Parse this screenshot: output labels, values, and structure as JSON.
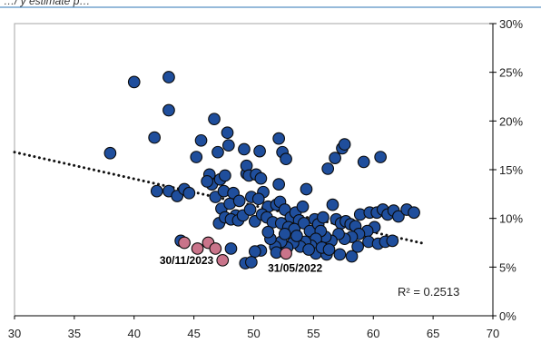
{
  "header": {
    "text": "…/ y estimate p…"
  },
  "chart_data": {
    "type": "scatter",
    "title": "",
    "xlabel": "",
    "ylabel": "",
    "xlim": [
      30,
      70
    ],
    "ylim": [
      0,
      30
    ],
    "x_ticks": [
      "30",
      "35",
      "40",
      "45",
      "50",
      "55",
      "60",
      "65",
      "70"
    ],
    "y_ticks": [
      "0%",
      "5%",
      "10%",
      "15%",
      "20%",
      "25%",
      "30%"
    ],
    "y_axis_position": "right",
    "grid": false,
    "colors": {
      "main": "#1f4e9c",
      "highlight": "#c9748a",
      "outline": "#0a0a0a",
      "trend": "#111111",
      "accent": "#2e74b5"
    },
    "series": [
      {
        "role": "main",
        "points": [
          [
            38,
            16.7
          ],
          [
            40,
            24
          ],
          [
            41.7,
            18.3
          ],
          [
            42.9,
            24.5
          ],
          [
            42.9,
            21.1
          ],
          [
            41.9,
            12.8
          ],
          [
            42.9,
            12.8
          ],
          [
            43.6,
            12.3
          ],
          [
            44.2,
            13
          ],
          [
            44.6,
            12.6
          ],
          [
            43.9,
            7.7
          ],
          [
            45.2,
            16.3
          ],
          [
            45.6,
            18
          ],
          [
            46.3,
            14.5
          ],
          [
            46.5,
            13.5
          ],
          [
            46.7,
            20.2
          ],
          [
            47,
            16.8
          ],
          [
            47.2,
            14
          ],
          [
            47.8,
            18.8
          ],
          [
            47.9,
            17.5
          ],
          [
            47.6,
            14.4
          ],
          [
            46.1,
            13.8
          ],
          [
            46.8,
            12.2
          ],
          [
            47.3,
            11
          ],
          [
            47.5,
            12.8
          ],
          [
            48,
            11.5
          ],
          [
            48.3,
            12.6
          ],
          [
            48.5,
            10.3
          ],
          [
            48.8,
            11.8
          ],
          [
            49.2,
            17.1
          ],
          [
            49.4,
            14.6
          ],
          [
            49.4,
            15.4
          ],
          [
            49.6,
            14.4
          ],
          [
            49.8,
            12.2
          ],
          [
            50.2,
            14.5
          ],
          [
            50.5,
            16.9
          ],
          [
            50.6,
            14.1
          ],
          [
            50.8,
            12.7
          ],
          [
            50.4,
            12
          ],
          [
            51.2,
            11.2
          ],
          [
            47.1,
            9.5
          ],
          [
            47.6,
            10.1
          ],
          [
            48.1,
            9.9
          ],
          [
            48.7,
            9.8
          ],
          [
            49.1,
            10.3
          ],
          [
            49.7,
            10.9
          ],
          [
            50.1,
            9.7
          ],
          [
            50.7,
            10.4
          ],
          [
            51.1,
            10.1
          ],
          [
            51.6,
            9.6
          ],
          [
            52.1,
            18.2
          ],
          [
            52.4,
            16.8
          ],
          [
            52.7,
            16.1
          ],
          [
            52.1,
            13.5
          ],
          [
            51.9,
            11.4
          ],
          [
            52.2,
            11.7
          ],
          [
            52.6,
            10.9
          ],
          [
            53.1,
            10.1
          ],
          [
            53.5,
            10.6
          ],
          [
            53.8,
            9.8
          ],
          [
            52.3,
            9.5
          ],
          [
            52.9,
            9.1
          ],
          [
            53.4,
            8.9
          ],
          [
            54.1,
            11.2
          ],
          [
            54.4,
            13
          ],
          [
            54.2,
            9.5
          ],
          [
            54.7,
            8.7
          ],
          [
            55.1,
            9.9
          ],
          [
            55.4,
            9.4
          ],
          [
            55.8,
            10.1
          ],
          [
            56.2,
            15.1
          ],
          [
            56.8,
            16.2
          ],
          [
            57.4,
            17.2
          ],
          [
            57.6,
            17.6
          ],
          [
            56.6,
            11.4
          ],
          [
            56.9,
            9.9
          ],
          [
            57.3,
            9.5
          ],
          [
            57.7,
            9.7
          ],
          [
            58.1,
            9.4
          ],
          [
            58.5,
            9.2
          ],
          [
            58.9,
            10.4
          ],
          [
            59.2,
            15.8
          ],
          [
            60.6,
            16.3
          ],
          [
            59.7,
            10.6
          ],
          [
            60.3,
            10.6
          ],
          [
            60.8,
            10.9
          ],
          [
            61.2,
            10.4
          ],
          [
            61.7,
            10.8
          ],
          [
            62.1,
            10.2
          ],
          [
            62.8,
            10.9
          ],
          [
            63.4,
            10.6
          ],
          [
            60.1,
            9.1
          ],
          [
            59.5,
            8.7
          ],
          [
            58.8,
            8.4
          ],
          [
            58.2,
            8.1
          ],
          [
            57.6,
            7.9
          ],
          [
            57.1,
            8.4
          ],
          [
            56.5,
            7.7
          ],
          [
            56,
            8.1
          ],
          [
            55.6,
            8.7
          ],
          [
            55.2,
            7.9
          ],
          [
            54.8,
            7.2
          ],
          [
            54.3,
            7.6
          ],
          [
            53.9,
            7.1
          ],
          [
            53.3,
            7.5
          ],
          [
            52.8,
            7
          ],
          [
            52.3,
            7.6
          ],
          [
            51.8,
            7.1
          ],
          [
            51.4,
            7.9
          ],
          [
            50.6,
            6.7
          ],
          [
            50.1,
            6.6
          ],
          [
            49.3,
            5.4
          ],
          [
            49.8,
            5.5
          ],
          [
            48.1,
            6.9
          ],
          [
            51.9,
            6.5
          ],
          [
            55.2,
            6.4
          ],
          [
            56.1,
            6.3
          ],
          [
            57.2,
            6.3
          ],
          [
            58.2,
            6.1
          ],
          [
            54.6,
            6.8
          ],
          [
            59.6,
            7.6
          ],
          [
            60.4,
            7.4
          ],
          [
            61,
            7.6
          ],
          [
            61.6,
            7.7
          ],
          [
            58.7,
            7.1
          ],
          [
            55.7,
            7
          ],
          [
            56.3,
            6.8
          ],
          [
            53.6,
            8.2
          ],
          [
            52.6,
            8.4
          ],
          [
            51.2,
            8.6
          ]
        ]
      },
      {
        "role": "highlight",
        "points": [
          [
            44.2,
            7.5
          ],
          [
            45.3,
            6.9
          ],
          [
            46.2,
            7.5
          ],
          [
            46.8,
            6.9
          ],
          [
            47.4,
            5.7
          ],
          [
            52.7,
            6.4
          ]
        ]
      }
    ],
    "trendline": {
      "type": "linear",
      "r_squared": "R² = 0.2513",
      "x_range": [
        30,
        64.3
      ],
      "y_at_start": 16.8,
      "y_at_end": 7.4
    },
    "annotations": [
      {
        "text": "30/11/2023",
        "anchor": [
          47.4,
          5.7
        ]
      },
      {
        "text": "31/05/2022",
        "anchor": [
          52.7,
          6.4
        ]
      }
    ]
  }
}
